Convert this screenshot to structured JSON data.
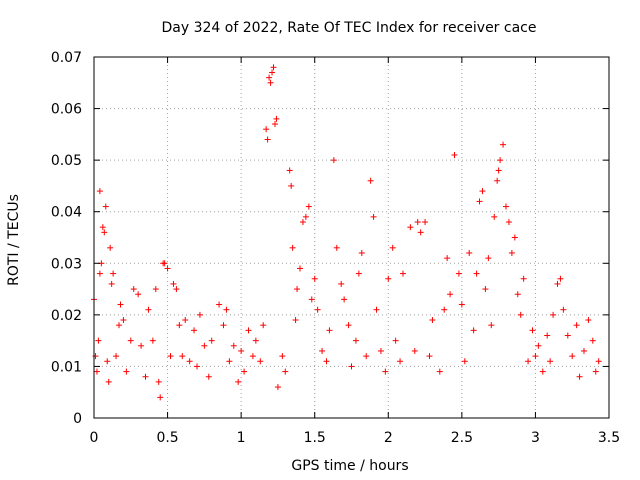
{
  "chart_data": {
    "type": "scatter",
    "title": "Day 324 of 2022, Rate Of TEC Index for receiver cace",
    "xlabel": "GPS time / hours",
    "ylabel": "ROTI / TECUs",
    "xlim": [
      0,
      3.5
    ],
    "ylim": [
      0,
      0.07
    ],
    "xticks": [
      "0",
      "0.5",
      "1",
      "1.5",
      "2",
      "2.5",
      "3",
      "3.5"
    ],
    "yticks": [
      "0",
      "0.01",
      "0.02",
      "0.03",
      "0.04",
      "0.05",
      "0.06",
      "0.07"
    ],
    "grid": true,
    "marker": "+",
    "color": "#ff0000",
    "series": [
      {
        "points": [
          [
            0.0,
            0.023
          ],
          [
            0.01,
            0.012
          ],
          [
            0.02,
            0.009
          ],
          [
            0.03,
            0.015
          ],
          [
            0.04,
            0.028
          ],
          [
            0.04,
            0.044
          ],
          [
            0.05,
            0.03
          ],
          [
            0.06,
            0.037
          ],
          [
            0.07,
            0.036
          ],
          [
            0.08,
            0.041
          ],
          [
            0.09,
            0.011
          ],
          [
            0.1,
            0.007
          ],
          [
            0.11,
            0.033
          ],
          [
            0.12,
            0.026
          ],
          [
            0.13,
            0.028
          ],
          [
            0.15,
            0.012
          ],
          [
            0.17,
            0.018
          ],
          [
            0.18,
            0.022
          ],
          [
            0.2,
            0.019
          ],
          [
            0.22,
            0.009
          ],
          [
            0.25,
            0.015
          ],
          [
            0.27,
            0.025
          ],
          [
            0.3,
            0.024
          ],
          [
            0.32,
            0.014
          ],
          [
            0.35,
            0.008
          ],
          [
            0.37,
            0.021
          ],
          [
            0.4,
            0.015
          ],
          [
            0.42,
            0.025
          ],
          [
            0.44,
            0.007
          ],
          [
            0.45,
            0.004
          ],
          [
            0.47,
            0.03
          ],
          [
            0.48,
            0.03
          ],
          [
            0.5,
            0.029
          ],
          [
            0.52,
            0.012
          ],
          [
            0.54,
            0.026
          ],
          [
            0.56,
            0.025
          ],
          [
            0.58,
            0.018
          ],
          [
            0.6,
            0.012
          ],
          [
            0.62,
            0.019
          ],
          [
            0.65,
            0.011
          ],
          [
            0.68,
            0.017
          ],
          [
            0.7,
            0.01
          ],
          [
            0.72,
            0.02
          ],
          [
            0.75,
            0.014
          ],
          [
            0.78,
            0.008
          ],
          [
            0.8,
            0.015
          ],
          [
            0.85,
            0.022
          ],
          [
            0.88,
            0.018
          ],
          [
            0.9,
            0.021
          ],
          [
            0.92,
            0.011
          ],
          [
            0.95,
            0.014
          ],
          [
            0.98,
            0.007
          ],
          [
            1.0,
            0.013
          ],
          [
            1.02,
            0.009
          ],
          [
            1.05,
            0.017
          ],
          [
            1.08,
            0.012
          ],
          [
            1.1,
            0.015
          ],
          [
            1.13,
            0.011
          ],
          [
            1.15,
            0.018
          ],
          [
            1.17,
            0.056
          ],
          [
            1.18,
            0.054
          ],
          [
            1.19,
            0.066
          ],
          [
            1.2,
            0.065
          ],
          [
            1.21,
            0.067
          ],
          [
            1.22,
            0.068
          ],
          [
            1.23,
            0.057
          ],
          [
            1.24,
            0.058
          ],
          [
            1.25,
            0.006
          ],
          [
            1.28,
            0.012
          ],
          [
            1.3,
            0.009
          ],
          [
            1.33,
            0.048
          ],
          [
            1.34,
            0.045
          ],
          [
            1.35,
            0.033
          ],
          [
            1.37,
            0.019
          ],
          [
            1.38,
            0.025
          ],
          [
            1.4,
            0.029
          ],
          [
            1.42,
            0.038
          ],
          [
            1.44,
            0.039
          ],
          [
            1.46,
            0.041
          ],
          [
            1.48,
            0.023
          ],
          [
            1.5,
            0.027
          ],
          [
            1.52,
            0.021
          ],
          [
            1.55,
            0.013
          ],
          [
            1.58,
            0.011
          ],
          [
            1.6,
            0.017
          ],
          [
            1.63,
            0.05
          ],
          [
            1.65,
            0.033
          ],
          [
            1.68,
            0.026
          ],
          [
            1.7,
            0.023
          ],
          [
            1.73,
            0.018
          ],
          [
            1.75,
            0.01
          ],
          [
            1.78,
            0.015
          ],
          [
            1.8,
            0.028
          ],
          [
            1.82,
            0.032
          ],
          [
            1.85,
            0.012
          ],
          [
            1.88,
            0.046
          ],
          [
            1.9,
            0.039
          ],
          [
            1.92,
            0.021
          ],
          [
            1.95,
            0.013
          ],
          [
            1.98,
            0.009
          ],
          [
            2.0,
            0.027
          ],
          [
            2.03,
            0.033
          ],
          [
            2.05,
            0.015
          ],
          [
            2.08,
            0.011
          ],
          [
            2.1,
            0.028
          ],
          [
            2.15,
            0.037
          ],
          [
            2.18,
            0.013
          ],
          [
            2.2,
            0.038
          ],
          [
            2.22,
            0.036
          ],
          [
            2.25,
            0.038
          ],
          [
            2.28,
            0.012
          ],
          [
            2.3,
            0.019
          ],
          [
            2.35,
            0.009
          ],
          [
            2.38,
            0.021
          ],
          [
            2.4,
            0.031
          ],
          [
            2.42,
            0.024
          ],
          [
            2.45,
            0.051
          ],
          [
            2.48,
            0.028
          ],
          [
            2.5,
            0.022
          ],
          [
            2.52,
            0.011
          ],
          [
            2.55,
            0.032
          ],
          [
            2.58,
            0.017
          ],
          [
            2.6,
            0.028
          ],
          [
            2.62,
            0.042
          ],
          [
            2.64,
            0.044
          ],
          [
            2.66,
            0.025
          ],
          [
            2.68,
            0.031
          ],
          [
            2.7,
            0.018
          ],
          [
            2.72,
            0.039
          ],
          [
            2.74,
            0.046
          ],
          [
            2.75,
            0.048
          ],
          [
            2.76,
            0.05
          ],
          [
            2.78,
            0.053
          ],
          [
            2.8,
            0.041
          ],
          [
            2.82,
            0.038
          ],
          [
            2.84,
            0.032
          ],
          [
            2.86,
            0.035
          ],
          [
            2.88,
            0.024
          ],
          [
            2.9,
            0.02
          ],
          [
            2.92,
            0.027
          ],
          [
            2.95,
            0.011
          ],
          [
            2.98,
            0.017
          ],
          [
            3.0,
            0.012
          ],
          [
            3.02,
            0.014
          ],
          [
            3.05,
            0.009
          ],
          [
            3.08,
            0.016
          ],
          [
            3.1,
            0.011
          ],
          [
            3.12,
            0.02
          ],
          [
            3.15,
            0.026
          ],
          [
            3.17,
            0.027
          ],
          [
            3.19,
            0.021
          ],
          [
            3.22,
            0.016
          ],
          [
            3.25,
            0.012
          ],
          [
            3.28,
            0.018
          ],
          [
            3.3,
            0.008
          ],
          [
            3.33,
            0.013
          ],
          [
            3.36,
            0.019
          ],
          [
            3.39,
            0.015
          ],
          [
            3.41,
            0.009
          ],
          [
            3.43,
            0.011
          ]
        ]
      }
    ]
  }
}
